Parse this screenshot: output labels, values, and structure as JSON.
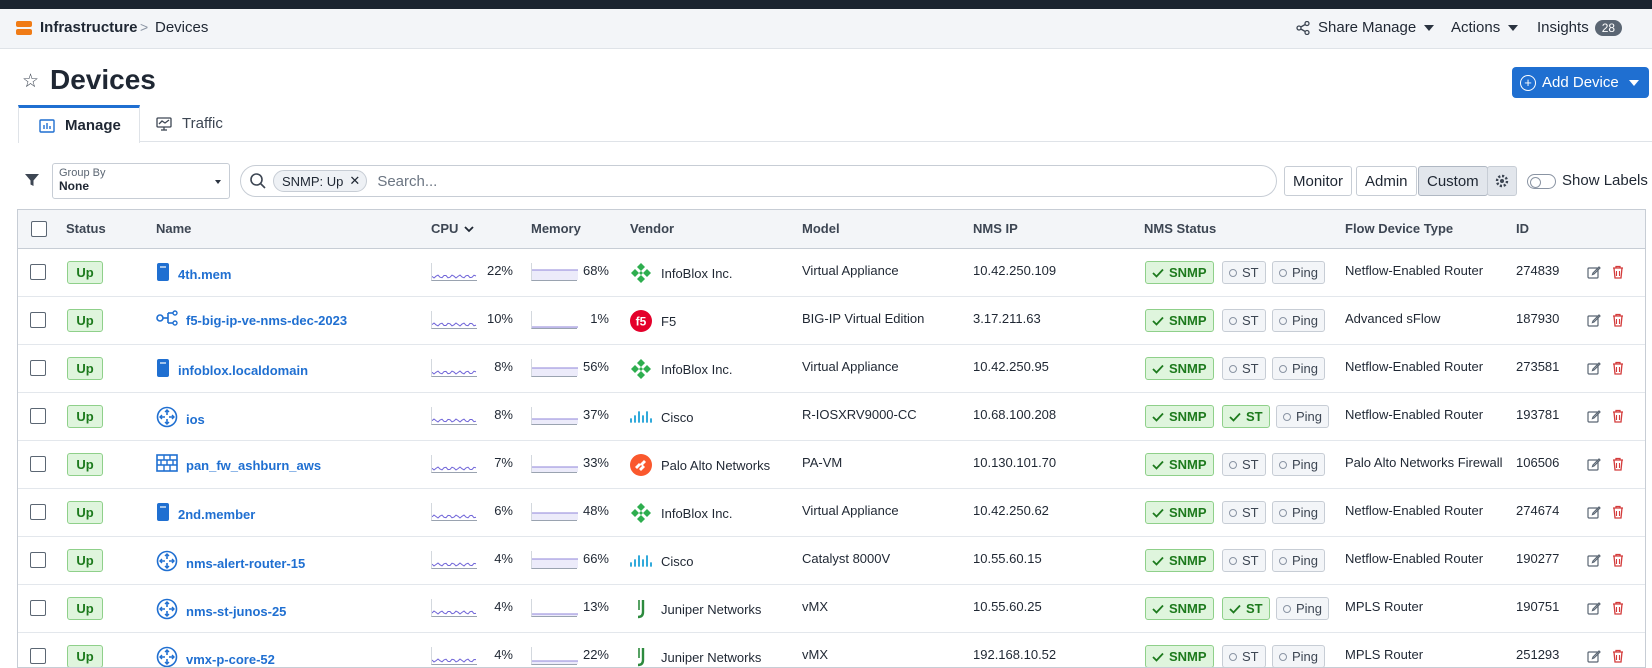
{
  "breadcrumb": {
    "root": "Infrastructure",
    "separator": ">",
    "current": "Devices"
  },
  "top_actions": {
    "share": "Share",
    "manage": "Manage",
    "actions": "Actions",
    "insights": "Insights",
    "insights_count": "28"
  },
  "page": {
    "title": "Devices",
    "add_button": "Add Device"
  },
  "tabs": [
    {
      "label": "Manage"
    },
    {
      "label": "Traffic"
    }
  ],
  "toolbar": {
    "group_by_label": "Group By",
    "group_by_value": "None",
    "filter_chip": "SNMP: Up",
    "search_placeholder": "Search...",
    "view_buttons": [
      "Monitor",
      "Admin",
      "Custom"
    ],
    "selected_view": "Custom",
    "show_labels": "Show Labels"
  },
  "table": {
    "columns": {
      "status": "Status",
      "name": "Name",
      "cpu": "CPU",
      "memory": "Memory",
      "vendor": "Vendor",
      "model": "Model",
      "nms_ip": "NMS IP",
      "nms_status": "NMS Status",
      "flow_type": "Flow Device Type",
      "id": "ID"
    },
    "status_labels": {
      "snmp": "SNMP",
      "st": "ST",
      "ping": "Ping"
    },
    "rows": [
      {
        "status": "Up",
        "name": "4th.mem",
        "icon": "appliance-icon",
        "cpu": "22%",
        "memory": "68%",
        "vendor": "InfoBlox Inc.",
        "vendor_logo": "infoblox-logo",
        "model": "Virtual Appliance",
        "ip": "10.42.250.109",
        "snmp": true,
        "st": false,
        "ping": false,
        "flow": "Netflow-Enabled Router",
        "id": "274839"
      },
      {
        "status": "Up",
        "name": "f5-big-ip-ve-nms-dec-2023",
        "icon": "load-balancer-icon",
        "cpu": "10%",
        "memory": "1%",
        "vendor": "F5",
        "vendor_logo": "f5-logo",
        "model": "BIG-IP Virtual Edition",
        "ip": "3.17.211.63",
        "snmp": true,
        "st": false,
        "ping": false,
        "flow": "Advanced sFlow",
        "id": "187930"
      },
      {
        "status": "Up",
        "name": "infoblox.localdomain",
        "icon": "appliance-icon",
        "cpu": "8%",
        "memory": "56%",
        "vendor": "InfoBlox Inc.",
        "vendor_logo": "infoblox-logo",
        "model": "Virtual Appliance",
        "ip": "10.42.250.95",
        "snmp": true,
        "st": false,
        "ping": false,
        "flow": "Netflow-Enabled Router",
        "id": "273581"
      },
      {
        "status": "Up",
        "name": "ios",
        "icon": "router-icon",
        "cpu": "8%",
        "memory": "37%",
        "vendor": "Cisco",
        "vendor_logo": "cisco-logo",
        "model": "R-IOSXRV9000-CC",
        "ip": "10.68.100.208",
        "snmp": true,
        "st": true,
        "ping": false,
        "flow": "Netflow-Enabled Router",
        "id": "193781"
      },
      {
        "status": "Up",
        "name": "pan_fw_ashburn_aws",
        "icon": "firewall-icon",
        "cpu": "7%",
        "memory": "33%",
        "vendor": "Palo Alto Networks",
        "vendor_logo": "paloalto-logo",
        "model": "PA-VM",
        "ip": "10.130.101.70",
        "snmp": true,
        "st": false,
        "ping": false,
        "flow": "Palo Alto Networks Firewall",
        "id": "106506"
      },
      {
        "status": "Up",
        "name": "2nd.member",
        "icon": "appliance-icon",
        "cpu": "6%",
        "memory": "48%",
        "vendor": "InfoBlox Inc.",
        "vendor_logo": "infoblox-logo",
        "model": "Virtual Appliance",
        "ip": "10.42.250.62",
        "snmp": true,
        "st": false,
        "ping": false,
        "flow": "Netflow-Enabled Router",
        "id": "274674"
      },
      {
        "status": "Up",
        "name": "nms-alert-router-15",
        "icon": "router-icon",
        "cpu": "4%",
        "memory": "66%",
        "vendor": "Cisco",
        "vendor_logo": "cisco-logo",
        "model": "Catalyst 8000V",
        "ip": "10.55.60.15",
        "snmp": true,
        "st": false,
        "ping": false,
        "flow": "Netflow-Enabled Router",
        "id": "190277"
      },
      {
        "status": "Up",
        "name": "nms-st-junos-25",
        "icon": "router-icon",
        "cpu": "4%",
        "memory": "13%",
        "vendor": "Juniper Networks",
        "vendor_logo": "juniper-logo",
        "model": "vMX",
        "ip": "10.55.60.25",
        "snmp": true,
        "st": true,
        "ping": false,
        "flow": "MPLS Router",
        "id": "190751"
      },
      {
        "status": "Up",
        "name": "vmx-p-core-52",
        "icon": "router-icon",
        "cpu": "4%",
        "memory": "22%",
        "vendor": "Juniper Networks",
        "vendor_logo": "juniper-logo",
        "model": "vMX",
        "ip": "192.168.10.52",
        "snmp": true,
        "st": false,
        "ping": false,
        "flow": "MPLS Router",
        "id": "251293"
      }
    ]
  },
  "colors": {
    "accent": "#1f6fd1",
    "ok_bg": "#dff5dd",
    "ok_text": "#1d7a1d",
    "delete": "#d43c3c",
    "brand": "#f07b16"
  }
}
